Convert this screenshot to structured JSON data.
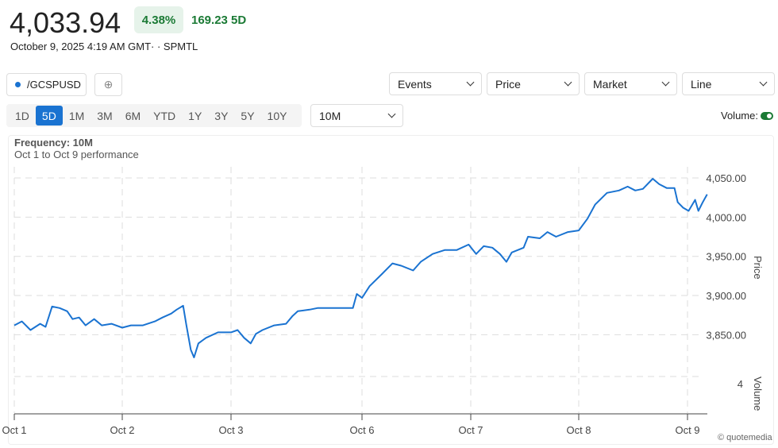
{
  "header": {
    "price": "4,033.94",
    "change_pct": "4.38%",
    "change_abs": "169.23 5D",
    "timestamp": "October 9, 2025 4:19 AM GMT· · SPMTL"
  },
  "toolbar": {
    "symbol": "/GCSPUSD",
    "add_icon": "⊕",
    "events": "Events",
    "price_sel": "Price",
    "market": "Market",
    "line": "Line",
    "frequency_sel": "10M",
    "volume_label": "Volume:",
    "volume_on": true
  },
  "ranges": [
    {
      "label": "1D"
    },
    {
      "label": "5D",
      "active": true
    },
    {
      "label": "1M"
    },
    {
      "label": "3M"
    },
    {
      "label": "6M"
    },
    {
      "label": "YTD"
    },
    {
      "label": "1Y"
    },
    {
      "label": "3Y"
    },
    {
      "label": "5Y"
    },
    {
      "label": "10Y"
    }
  ],
  "chart_panel": {
    "frequency": "Frequency: 10M",
    "performance": "Oct 1 to Oct 9 performance",
    "credit": "© quotemedia"
  },
  "colors": {
    "line": "#1a73d1",
    "positive": "#1b7a35",
    "active": "#1a73d1"
  },
  "chart_data": {
    "type": "line",
    "xlabel": "",
    "ylabel": "Price",
    "y2label": "Volume",
    "volume_tick": "4",
    "categories": [
      "Oct 1",
      "Oct 2",
      "Oct 3",
      "Oct 6",
      "Oct 7",
      "Oct 8",
      "Oct 9"
    ],
    "yticks": [
      "4,050.00",
      "4,000.00",
      "3,950.00",
      "3,900.00",
      "3,850.00"
    ],
    "ytick_values": [
      4050,
      4000,
      3950,
      3900,
      3850
    ],
    "grid": true,
    "series": [
      {
        "name": "/GCSPUSD",
        "x": [
          0,
          0.07,
          0.15,
          0.24,
          0.29,
          0.35,
          0.42,
          0.49,
          0.54,
          0.6,
          0.66,
          0.74,
          0.81,
          0.9,
          1,
          1.08,
          1.19,
          1.3,
          1.37,
          1.45,
          1.5,
          1.56,
          1.59,
          1.63,
          1.66,
          1.7,
          1.77,
          1.88,
          2,
          2.05,
          2.1,
          2.15,
          2.19,
          2.24,
          2.33,
          2.42,
          2.47,
          2.51,
          2.6,
          2.66,
          2.78,
          2.93,
          2.96,
          3,
          3.07,
          3.18,
          3.28,
          3.36,
          3.47,
          3.54,
          3.65,
          3.76,
          3.87,
          3.98,
          4.05,
          4.12,
          4.2,
          4.27,
          4.33,
          4.38,
          4.49,
          4.53,
          4.64,
          4.71,
          4.79,
          4.9,
          5,
          5.08,
          5.15,
          5.26,
          5.37,
          5.45,
          5.52,
          5.59,
          5.68,
          5.74,
          5.81,
          5.88,
          5.91,
          5.96,
          6.01,
          6.07,
          6.1,
          6.14,
          6.18
        ],
        "values": [
          3862,
          3867,
          3856,
          3864,
          3860,
          3886,
          3884,
          3880,
          3870,
          3872,
          3862,
          3870,
          3862,
          3864,
          3859,
          3862,
          3862,
          3867,
          3872,
          3877,
          3882,
          3887,
          3862,
          3831,
          3821,
          3839,
          3846,
          3853,
          3853,
          3856,
          3846,
          3839,
          3851,
          3856,
          3862,
          3864,
          3874,
          3880,
          3882,
          3884,
          3884,
          3884,
          3902,
          3897,
          3912,
          3927,
          3941,
          3938,
          3932,
          3943,
          3953,
          3958,
          3958,
          3965,
          3953,
          3963,
          3961,
          3953,
          3943,
          3955,
          3961,
          3975,
          3973,
          3981,
          3975,
          3981,
          3983,
          3998,
          4016,
          4031,
          4034,
          4039,
          4034,
          4036,
          4049,
          4042,
          4037,
          4037,
          4019,
          4012,
          4008,
          4022,
          4008,
          4019,
          4029
        ]
      }
    ]
  }
}
